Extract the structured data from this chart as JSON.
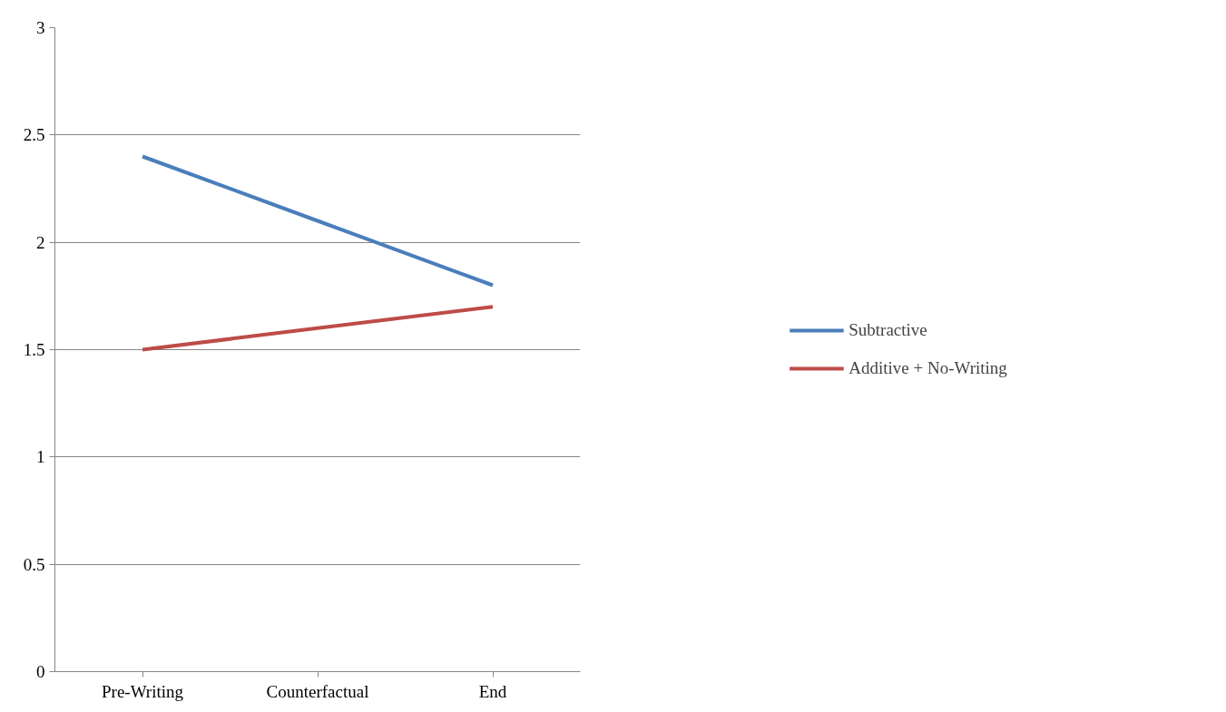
{
  "chart_data": {
    "type": "line",
    "categories": [
      "Pre-Writing",
      "Counterfactual",
      "End"
    ],
    "series": [
      {
        "name": "Subtractive",
        "color": "#4a7ebb",
        "values": [
          2.4,
          2.1,
          1.8
        ]
      },
      {
        "name": "Additive + No-Writing",
        "color": "#be4b48",
        "values": [
          1.5,
          1.6,
          1.7
        ]
      }
    ],
    "ylim": [
      0,
      3
    ],
    "yticks": [
      0,
      0.5,
      1,
      1.5,
      2,
      2.5,
      3
    ],
    "grid": "y",
    "legend": "right",
    "marker": "none",
    "line_style": "solid"
  }
}
